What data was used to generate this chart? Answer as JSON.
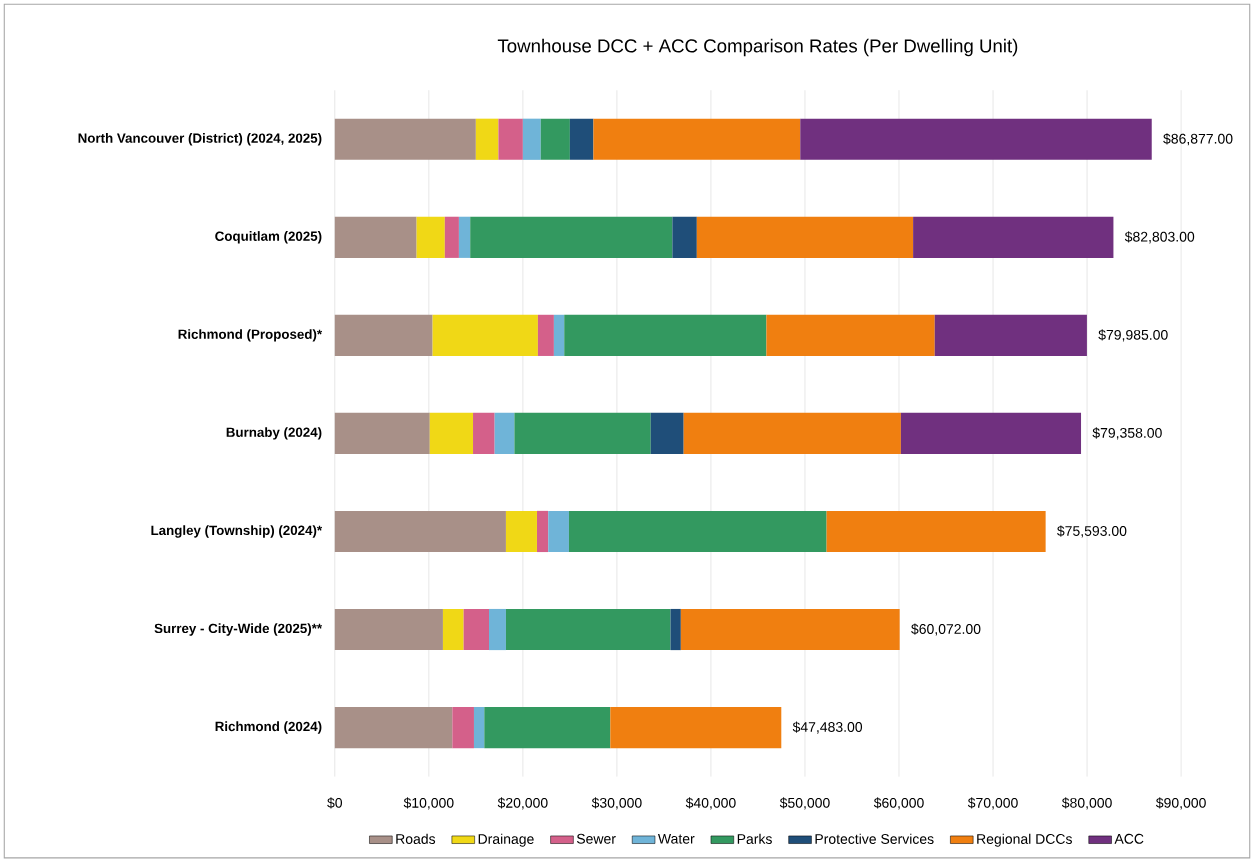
{
  "chart_data": {
    "type": "bar",
    "orientation": "horizontal",
    "stacked": true,
    "title": "Townhouse DCC + ACC Comparison Rates (Per Dwelling Unit)",
    "categories": [
      "North Vancouver (District) (2024, 2025)",
      "Coquitlam (2025)",
      "Richmond (Proposed)*",
      "Burnaby (2024)",
      "Langley (Township) (2024)*",
      "Surrey - City-Wide (2025)**",
      "Richmond (2024)"
    ],
    "series": [
      {
        "name": "Roads",
        "color": "#a89088",
        "values": [
          15000,
          8700,
          10400,
          10100,
          18200,
          11500,
          12500
        ]
      },
      {
        "name": "Drainage",
        "color": "#f0d816",
        "values": [
          2400,
          3000,
          11200,
          4600,
          3300,
          2200,
          null
        ]
      },
      {
        "name": "Sewer",
        "color": "#d4608a",
        "values": [
          2600,
          1500,
          1700,
          2300,
          1200,
          2700,
          2300
        ]
      },
      {
        "name": "Water",
        "color": "#6fb4d8",
        "values": [
          1900,
          1200,
          1100,
          2100,
          2200,
          1800,
          1100
        ]
      },
      {
        "name": "Parks",
        "color": "#339960",
        "values": [
          3100,
          21500,
          21500,
          14500,
          27400,
          17500,
          13400
        ]
      },
      {
        "name": "Protective Services",
        "color": "#1f4e79",
        "values": [
          2500,
          2600,
          null,
          3500,
          null,
          1100,
          null
        ]
      },
      {
        "name": "Regional DCCs",
        "color": "#f07f10",
        "values": [
          22000,
          23000,
          17900,
          23100,
          23293,
          23272,
          18183
        ]
      },
      {
        "name": "ACC",
        "color": "#70307f",
        "values": [
          37377,
          21303,
          16185,
          19158,
          null,
          null,
          null
        ]
      }
    ],
    "totals": [
      "$86,877.00",
      "$82,803.00",
      "$79,985.00",
      "$79,358.00",
      "$75,593.00",
      "$60,072.00",
      "$47,483.00"
    ],
    "xlim": [
      0,
      90000
    ],
    "xticks": [
      {
        "value": 0,
        "label": "$0"
      },
      {
        "value": 10000,
        "label": "$10,000"
      },
      {
        "value": 20000,
        "label": "$20,000"
      },
      {
        "value": 30000,
        "label": "$30,000"
      },
      {
        "value": 40000,
        "label": "$40,000"
      },
      {
        "value": 50000,
        "label": "$50,000"
      },
      {
        "value": 60000,
        "label": "$60,000"
      },
      {
        "value": 70000,
        "label": "$70,000"
      },
      {
        "value": 80000,
        "label": "$80,000"
      },
      {
        "value": 90000,
        "label": "$90,000"
      }
    ],
    "grid": "x",
    "legend": "bottom"
  }
}
